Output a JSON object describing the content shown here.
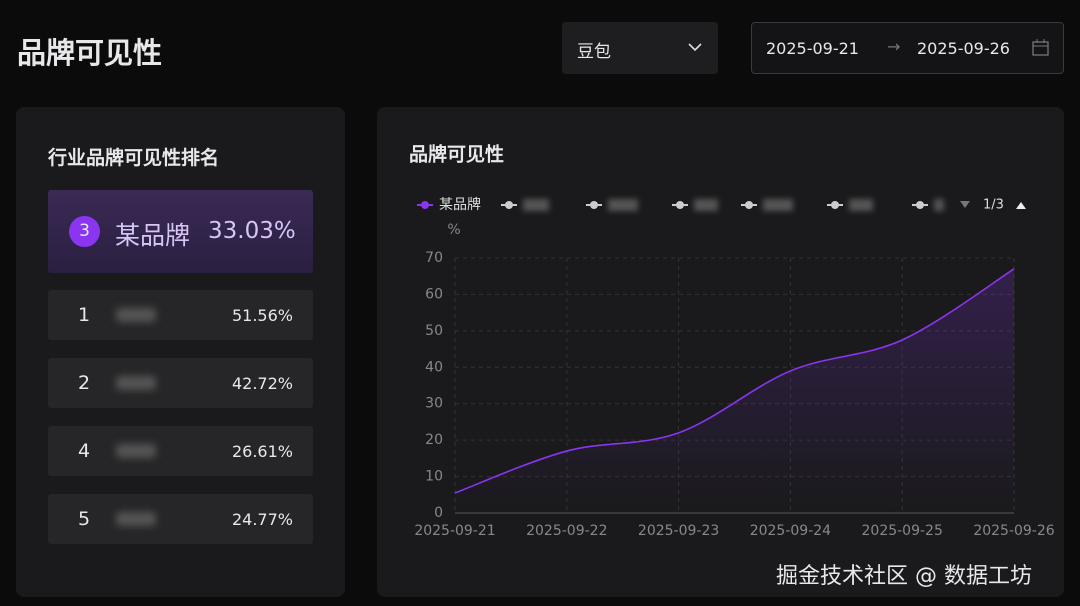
{
  "header": {
    "title": "品牌可见性",
    "model_select": "豆包",
    "date_start": "2025-09-21",
    "date_end": "2025-09-26"
  },
  "ranking": {
    "title": "行业品牌可见性排名",
    "highlight": {
      "rank": "3",
      "name": "某品牌",
      "value_label": "33.03%"
    },
    "rows": [
      {
        "rank": "1",
        "value_label": "51.56%"
      },
      {
        "rank": "2",
        "value_label": "42.72%"
      },
      {
        "rank": "4",
        "value_label": "26.61%"
      },
      {
        "rank": "5",
        "value_label": "24.77%"
      }
    ]
  },
  "chart_data": {
    "type": "line",
    "title": "品牌可见性",
    "y_label": "%",
    "x": [
      "2025-09-21",
      "2025-09-22",
      "2025-09-23",
      "2025-09-24",
      "2025-09-25",
      "2025-09-26"
    ],
    "series": [
      {
        "name": "某品牌",
        "color": "#8a35f0",
        "values": [
          5.5,
          17,
          22,
          39,
          47.5,
          67
        ]
      }
    ],
    "ylim": [
      0,
      70
    ],
    "yticks": [
      0,
      10,
      20,
      30,
      40,
      50,
      60,
      70
    ],
    "grid": true,
    "legend_page": "1/3"
  },
  "watermark": "掘金技术社区 @ 数据工坊"
}
